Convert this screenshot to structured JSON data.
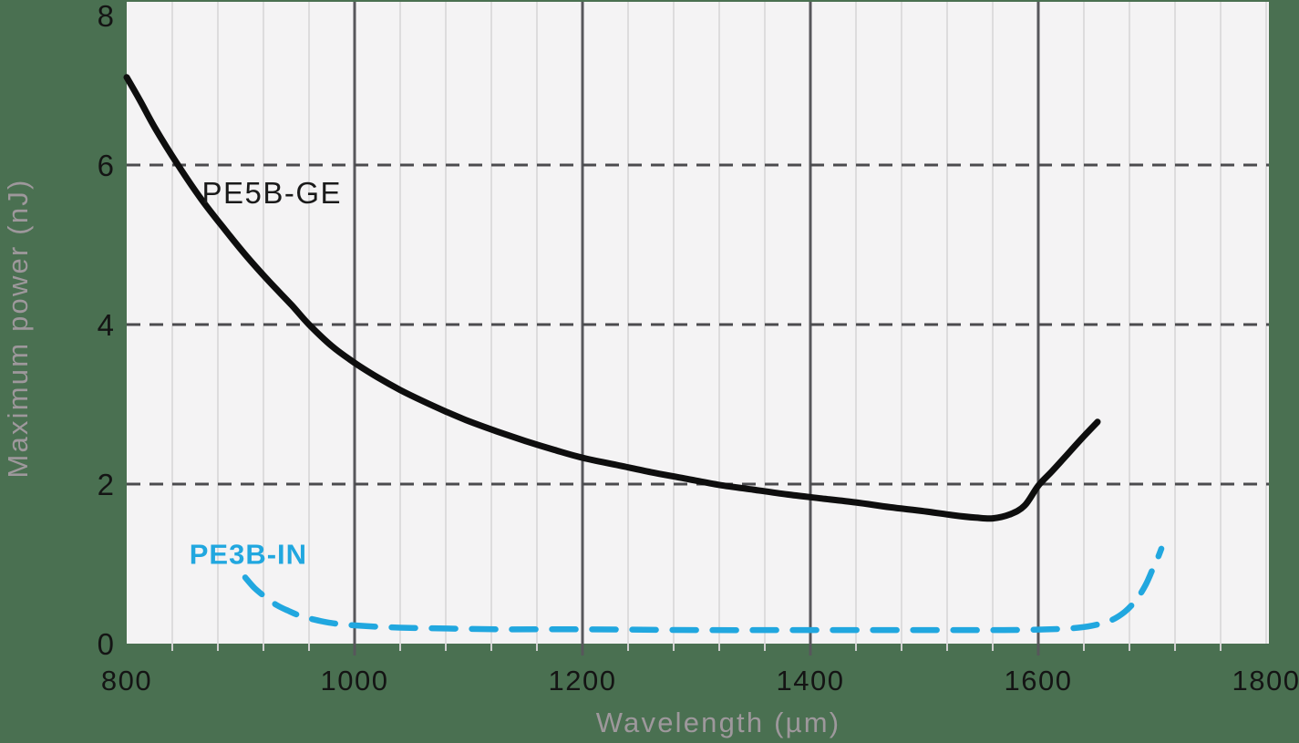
{
  "chart_data": {
    "type": "line",
    "title": "",
    "xlabel": "Wavelength (µm)",
    "ylabel": "Maximum power (nJ)",
    "xlim": [
      800,
      1802
    ],
    "ylim": [
      0,
      8.05
    ],
    "grid": true,
    "legend_position": "inline-annotations",
    "x_ticks_major": [
      800,
      1000,
      1200,
      1400,
      1600,
      1800
    ],
    "x_tick_labels": [
      "800",
      "1000",
      "1200",
      "1400",
      "1600",
      "1800"
    ],
    "x_gridlines_major": [
      1000,
      1200,
      1400,
      1600
    ],
    "x_gridlines_minor": {
      "start": 840,
      "step": 40,
      "end": 1800
    },
    "x_axis_ticks_minor": {
      "start": 840,
      "step": 40,
      "end": 1760
    },
    "y_ticks": [
      0,
      2,
      4,
      6,
      8
    ],
    "y_tick_labels": [
      "0",
      "2",
      "4",
      "6",
      "8"
    ],
    "y_gridlines_dashed": [
      2,
      4,
      6
    ],
    "colors": {
      "page_background": "#4a7051",
      "plot_background": "#f4f3f4",
      "grid_minor": "#dddcdd",
      "grid_major": "#57575b",
      "grid_dashed": "#4b4b4e",
      "tick_minor": "#cfcecf",
      "tick_major": "#57575b",
      "tick_text": "#141414",
      "axis_title_text": "#9e989c",
      "series_dark": "#0e0e0e",
      "series_blue": "#21a7df"
    },
    "series": [
      {
        "name": "PE5B-GE",
        "color": "#0e0e0e",
        "style": "solid",
        "stroke_width": 7,
        "label_anchor_um_nj": [
          866,
          5.52
        ],
        "points": [
          [
            800,
            7.1
          ],
          [
            812,
            6.8
          ],
          [
            825,
            6.46
          ],
          [
            845,
            6.0
          ],
          [
            865,
            5.58
          ],
          [
            885,
            5.21
          ],
          [
            905,
            4.86
          ],
          [
            925,
            4.54
          ],
          [
            945,
            4.24
          ],
          [
            960,
            4.0
          ],
          [
            980,
            3.73
          ],
          [
            1000,
            3.52
          ],
          [
            1020,
            3.34
          ],
          [
            1040,
            3.18
          ],
          [
            1060,
            3.04
          ],
          [
            1080,
            2.91
          ],
          [
            1100,
            2.79
          ],
          [
            1125,
            2.66
          ],
          [
            1150,
            2.54
          ],
          [
            1175,
            2.43
          ],
          [
            1200,
            2.33
          ],
          [
            1230,
            2.24
          ],
          [
            1260,
            2.15
          ],
          [
            1290,
            2.07
          ],
          [
            1320,
            1.99
          ],
          [
            1350,
            1.93
          ],
          [
            1380,
            1.87
          ],
          [
            1410,
            1.82
          ],
          [
            1440,
            1.77
          ],
          [
            1470,
            1.71
          ],
          [
            1500,
            1.66
          ],
          [
            1525,
            1.61
          ],
          [
            1545,
            1.58
          ],
          [
            1560,
            1.57
          ],
          [
            1575,
            1.62
          ],
          [
            1588,
            1.73
          ],
          [
            1600,
            1.98
          ],
          [
            1612,
            2.16
          ],
          [
            1626,
            2.38
          ],
          [
            1640,
            2.6
          ],
          [
            1652,
            2.78
          ]
        ]
      },
      {
        "name": "PE3B-IN",
        "color": "#21a7df",
        "style": "dashed",
        "stroke_width": 6.5,
        "dash": [
          26,
          18
        ],
        "label_anchor_um_nj": [
          855,
          1.0
        ],
        "points": [
          [
            904,
            0.83
          ],
          [
            912,
            0.7
          ],
          [
            922,
            0.58
          ],
          [
            932,
            0.48
          ],
          [
            942,
            0.41
          ],
          [
            952,
            0.35
          ],
          [
            962,
            0.31
          ],
          [
            975,
            0.27
          ],
          [
            990,
            0.24
          ],
          [
            1010,
            0.22
          ],
          [
            1040,
            0.2
          ],
          [
            1080,
            0.19
          ],
          [
            1130,
            0.18
          ],
          [
            1200,
            0.18
          ],
          [
            1300,
            0.17
          ],
          [
            1400,
            0.17
          ],
          [
            1500,
            0.17
          ],
          [
            1570,
            0.17
          ],
          [
            1610,
            0.18
          ],
          [
            1635,
            0.2
          ],
          [
            1652,
            0.24
          ],
          [
            1665,
            0.3
          ],
          [
            1676,
            0.4
          ],
          [
            1686,
            0.55
          ],
          [
            1694,
            0.73
          ],
          [
            1700,
            0.92
          ],
          [
            1705,
            1.08
          ],
          [
            1708,
            1.19
          ]
        ]
      }
    ]
  }
}
